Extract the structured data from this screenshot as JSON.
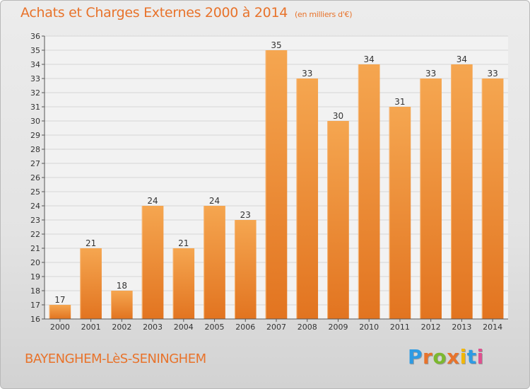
{
  "title": "Achats et Charges Externes 2000 à 2014",
  "subtitle": "(en milliers d'€)",
  "commune": "BAYENGHEM-LèS-SENINGHEM",
  "logo": {
    "letters": [
      "P",
      "r",
      "o",
      "x",
      "i",
      "t",
      "i"
    ],
    "colors": [
      "#2e9be3",
      "#e8732b",
      "#7cb82f",
      "#e8732b",
      "#f2b705",
      "#2e9be3",
      "#e0508f"
    ]
  },
  "colors": {
    "bar": "#f39b45",
    "bar_dark": "#e47826",
    "text": "#333333",
    "title": "#e8732b"
  },
  "chart_data": {
    "type": "bar",
    "categories": [
      "2000",
      "2001",
      "2002",
      "2003",
      "2004",
      "2005",
      "2006",
      "2007",
      "2008",
      "2009",
      "2010",
      "2011",
      "2012",
      "2013",
      "2014"
    ],
    "values": [
      17,
      21,
      18,
      24,
      21,
      24,
      23,
      35,
      33,
      30,
      34,
      31,
      33,
      34,
      33
    ],
    "ylim": [
      16,
      36
    ],
    "yticks": [
      16,
      17,
      18,
      19,
      20,
      21,
      22,
      23,
      24,
      25,
      26,
      27,
      28,
      29,
      30,
      31,
      32,
      33,
      34,
      35,
      36
    ],
    "grid": true
  }
}
